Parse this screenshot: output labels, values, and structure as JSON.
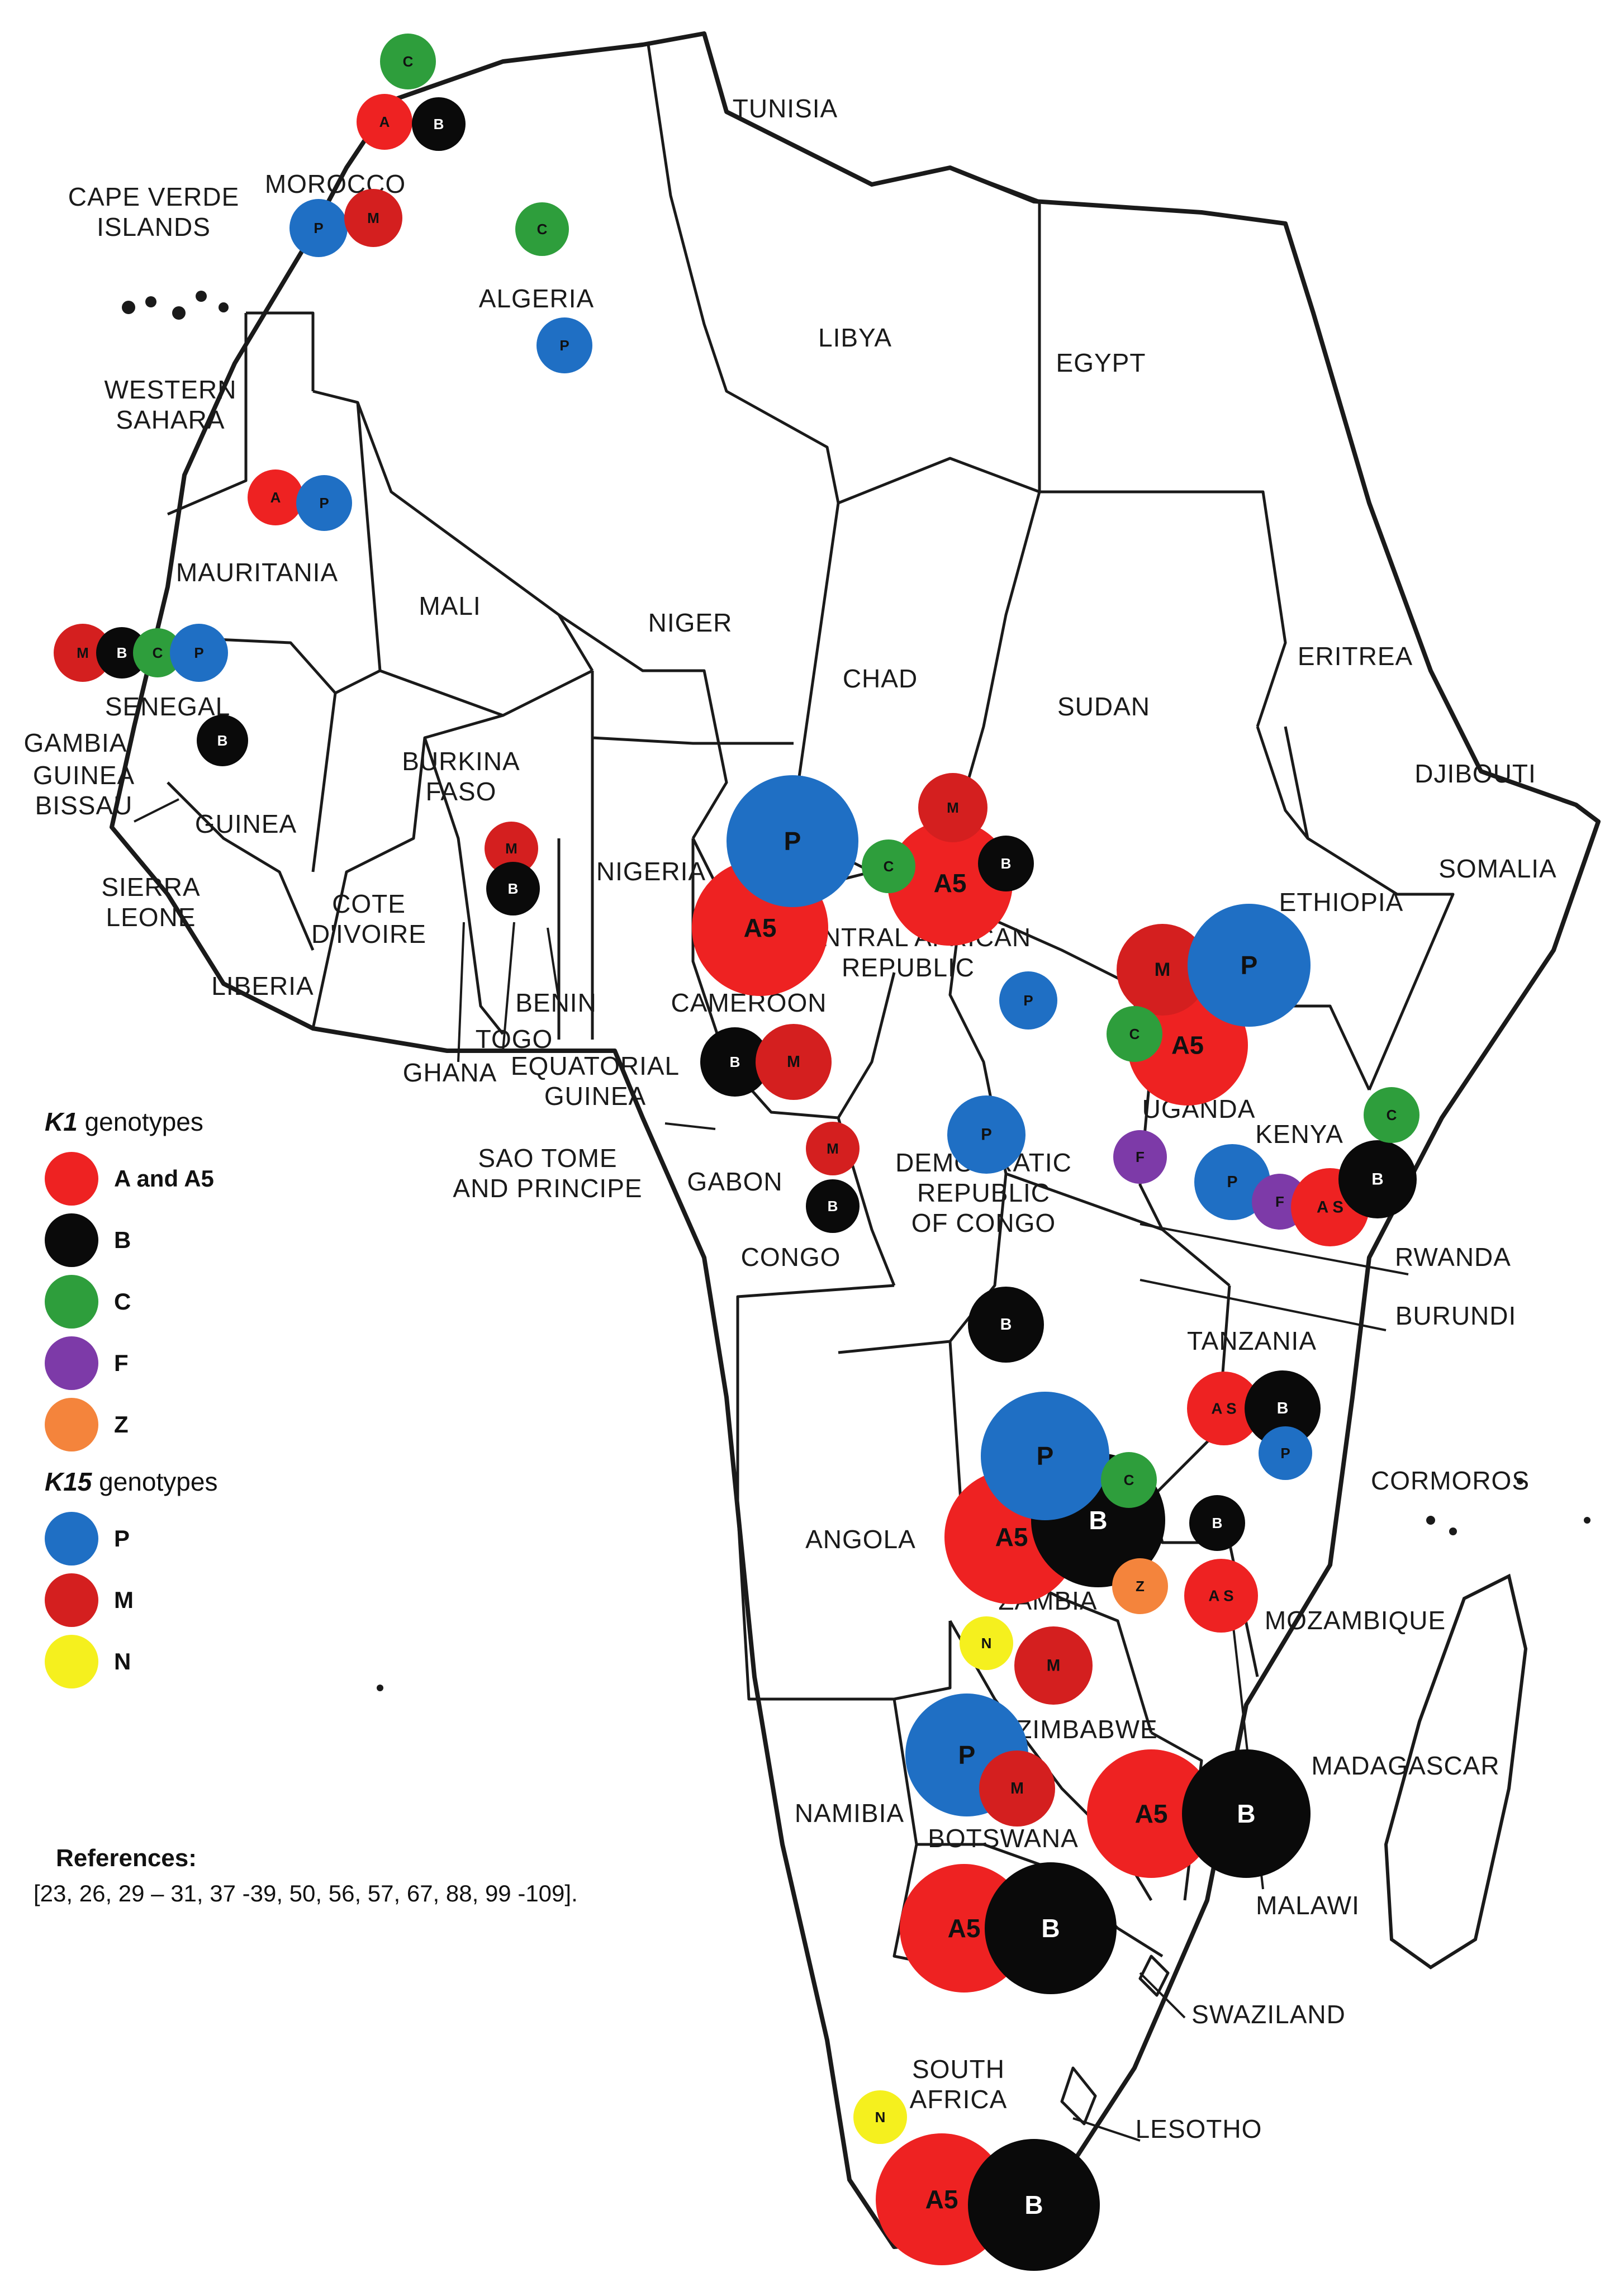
{
  "countries": [
    {
      "name": "TUNISIA",
      "lines": [
        "TUNISIA"
      ]
    },
    {
      "name": "MOROCCO",
      "lines": [
        "MOROCCO"
      ]
    },
    {
      "name": "CAPE VERDE ISLANDS",
      "lines": [
        "CAPE VERDE",
        "ISLANDS"
      ]
    },
    {
      "name": "ALGERIA",
      "lines": [
        "ALGERIA"
      ]
    },
    {
      "name": "LIBYA",
      "lines": [
        "LIBYA"
      ]
    },
    {
      "name": "EGYPT",
      "lines": [
        "EGYPT"
      ]
    },
    {
      "name": "WESTERN SAHARA",
      "lines": [
        "WESTERN",
        "SAHARA"
      ]
    },
    {
      "name": "MAURITANIA",
      "lines": [
        "MAURITANIA"
      ]
    },
    {
      "name": "MALI",
      "lines": [
        "MALI"
      ]
    },
    {
      "name": "NIGER",
      "lines": [
        "NIGER"
      ]
    },
    {
      "name": "CHAD",
      "lines": [
        "CHAD"
      ]
    },
    {
      "name": "SUDAN",
      "lines": [
        "SUDAN"
      ]
    },
    {
      "name": "ERITREA",
      "lines": [
        "ERITREA"
      ]
    },
    {
      "name": "DJIBOUTI",
      "lines": [
        "DJIBOUTI"
      ]
    },
    {
      "name": "SOMALIA",
      "lines": [
        "SOMALIA"
      ]
    },
    {
      "name": "ETHIOPIA",
      "lines": [
        "ETHIOPIA"
      ]
    },
    {
      "name": "SENEGAL",
      "lines": [
        "SENEGAL"
      ]
    },
    {
      "name": "GAMBIA",
      "lines": [
        "GAMBIA"
      ]
    },
    {
      "name": "GUINEA BISSAU",
      "lines": [
        "GUINEA",
        "BISSAU"
      ]
    },
    {
      "name": "GUINEA",
      "lines": [
        "GUINEA"
      ]
    },
    {
      "name": "SIERRA LEONE",
      "lines": [
        "SIERRA",
        "LEONE"
      ]
    },
    {
      "name": "LIBERIA",
      "lines": [
        "LIBERIA"
      ]
    },
    {
      "name": "COTE D'IVOIRE",
      "lines": [
        "COTE",
        "D'IVOIRE"
      ]
    },
    {
      "name": "BURKINA FASO",
      "lines": [
        "BURKINA",
        "FASO"
      ]
    },
    {
      "name": "GHANA",
      "lines": [
        "GHANA"
      ]
    },
    {
      "name": "TOGO",
      "lines": [
        "TOGO"
      ]
    },
    {
      "name": "BENIN",
      "lines": [
        "BENIN"
      ]
    },
    {
      "name": "NIGERIA",
      "lines": [
        "NIGERIA"
      ]
    },
    {
      "name": "CAMEROON",
      "lines": [
        "CAMEROON"
      ]
    },
    {
      "name": "CENTRAL AFRICAN REPUBLIC",
      "lines": [
        "CENTRAL AFRICAN",
        "REPUBLIC"
      ]
    },
    {
      "name": "EQUATORIAL GUINEA",
      "lines": [
        "EQUATORIAL",
        "GUINEA"
      ]
    },
    {
      "name": "SAO TOME AND PRINCIPE",
      "lines": [
        "SAO TOME",
        "AND PRINCIPE"
      ]
    },
    {
      "name": "GABON",
      "lines": [
        "GABON"
      ]
    },
    {
      "name": "CONGO",
      "lines": [
        "CONGO"
      ]
    },
    {
      "name": "DEMOCRATIC REPUBLIC OF CONGO",
      "lines": [
        "DEMOCRATIC",
        "REPUBLIC",
        "OF CONGO"
      ]
    },
    {
      "name": "UGANDA",
      "lines": [
        "UGANDA"
      ]
    },
    {
      "name": "KENYA",
      "lines": [
        "KENYA"
      ]
    },
    {
      "name": "RWANDA",
      "lines": [
        "RWANDA"
      ]
    },
    {
      "name": "BURUNDI",
      "lines": [
        "BURUNDI"
      ]
    },
    {
      "name": "TANZANIA",
      "lines": [
        "TANZANIA"
      ]
    },
    {
      "name": "CORMOROS",
      "lines": [
        "CORMOROS"
      ]
    },
    {
      "name": "ANGOLA",
      "lines": [
        "ANGOLA"
      ]
    },
    {
      "name": "ZAMBIA",
      "lines": [
        "ZAMBIA"
      ]
    },
    {
      "name": "MOZAMBIQUE",
      "lines": [
        "MOZAMBIQUE"
      ]
    },
    {
      "name": "ZIMBABWE",
      "lines": [
        "ZIMBABWE"
      ]
    },
    {
      "name": "MADAGASCAR",
      "lines": [
        "MADAGASCAR"
      ]
    },
    {
      "name": "NAMIBIA",
      "lines": [
        "NAMIBIA"
      ]
    },
    {
      "name": "BOTSWANA",
      "lines": [
        "BOTSWANA"
      ]
    },
    {
      "name": "MALAWI",
      "lines": [
        "MALAWI"
      ]
    },
    {
      "name": "SWAZILAND",
      "lines": [
        "SWAZILAND"
      ]
    },
    {
      "name": "SOUTH AFRICA",
      "lines": [
        "SOUTH",
        "AFRICA"
      ]
    },
    {
      "name": "LESOTHO",
      "lines": [
        "LESOTHO"
      ]
    }
  ],
  "genotype_markers": [
    {
      "label": "C",
      "color": "#2e9e3c"
    },
    {
      "label": "A",
      "color": "#ee2222"
    },
    {
      "label": "B",
      "color": "#0a0a0a"
    },
    {
      "label": "P",
      "color": "#1f6fc4"
    },
    {
      "label": "M",
      "color": "#d41f1f"
    },
    {
      "label": "C",
      "color": "#2e9e3c"
    },
    {
      "label": "P",
      "color": "#1f6fc4"
    },
    {
      "label": "A",
      "color": "#ee2222"
    },
    {
      "label": "P",
      "color": "#1f6fc4"
    },
    {
      "label": "M",
      "color": "#d41f1f"
    },
    {
      "label": "B",
      "color": "#0a0a0a"
    },
    {
      "label": "C",
      "color": "#2e9e3c"
    },
    {
      "label": "P",
      "color": "#1f6fc4"
    },
    {
      "label": "B",
      "color": "#0a0a0a"
    },
    {
      "label": "M",
      "color": "#d41f1f"
    },
    {
      "label": "B",
      "color": "#0a0a0a"
    },
    {
      "label": "A5",
      "color": "#ee2222"
    },
    {
      "label": "P",
      "color": "#1f6fc4"
    },
    {
      "label": "A5",
      "color": "#ee2222"
    },
    {
      "label": "M",
      "color": "#d41f1f"
    },
    {
      "label": "C",
      "color": "#2e9e3c"
    },
    {
      "label": "B",
      "color": "#0a0a0a"
    },
    {
      "label": "P",
      "color": "#1f6fc4"
    },
    {
      "label": "B",
      "color": "#0a0a0a"
    },
    {
      "label": "M",
      "color": "#d41f1f"
    },
    {
      "label": "M",
      "color": "#d41f1f"
    },
    {
      "label": "B",
      "color": "#0a0a0a"
    },
    {
      "label": "P",
      "color": "#1f6fc4"
    },
    {
      "label": "B",
      "color": "#0a0a0a"
    },
    {
      "label": "A5",
      "color": "#ee2222"
    },
    {
      "label": "M",
      "color": "#d41f1f"
    },
    {
      "label": "P",
      "color": "#1f6fc4"
    },
    {
      "label": "C",
      "color": "#2e9e3c"
    },
    {
      "label": "F",
      "color": "#7d3aa8"
    },
    {
      "label": "P",
      "color": "#1f6fc4"
    },
    {
      "label": "F",
      "color": "#7d3aa8"
    },
    {
      "label": "A S",
      "color": "#ee2222"
    },
    {
      "label": "B",
      "color": "#0a0a0a"
    },
    {
      "label": "C",
      "color": "#2e9e3c"
    },
    {
      "label": "A S",
      "color": "#ee2222"
    },
    {
      "label": "B",
      "color": "#0a0a0a"
    },
    {
      "label": "P",
      "color": "#1f6fc4"
    },
    {
      "label": "A5",
      "color": "#ee2222"
    },
    {
      "label": "B",
      "color": "#0a0a0a"
    },
    {
      "label": "P",
      "color": "#1f6fc4"
    },
    {
      "label": "C",
      "color": "#2e9e3c"
    },
    {
      "label": "Z",
      "color": "#f4843c"
    },
    {
      "label": "B",
      "color": "#0a0a0a"
    },
    {
      "label": "A S",
      "color": "#ee2222"
    },
    {
      "label": "N",
      "color": "#f5f01e"
    },
    {
      "label": "M",
      "color": "#d41f1f"
    },
    {
      "label": "P",
      "color": "#1f6fc4"
    },
    {
      "label": "M",
      "color": "#d41f1f"
    },
    {
      "label": "A5",
      "color": "#ee2222"
    },
    {
      "label": "B",
      "color": "#0a0a0a"
    },
    {
      "label": "A5",
      "color": "#ee2222"
    },
    {
      "label": "B",
      "color": "#0a0a0a"
    },
    {
      "label": "N",
      "color": "#f5f01e"
    },
    {
      "label": "A5",
      "color": "#ee2222"
    },
    {
      "label": "B",
      "color": "#0a0a0a"
    }
  ],
  "legend": {
    "k1_title_italic": "K1",
    "k1_title_rest": " genotypes",
    "k1_items": [
      {
        "label": "A and A5",
        "color": "#ee2222"
      },
      {
        "label": "B",
        "color": "#0a0a0a"
      },
      {
        "label": "C",
        "color": "#2e9e3c"
      },
      {
        "label": "F",
        "color": "#7d3aa8"
      },
      {
        "label": "Z",
        "color": "#f4843c"
      }
    ],
    "k15_title_italic": "K15",
    "k15_title_rest": " genotypes",
    "k15_items": [
      {
        "label": "P",
        "color": "#1f6fc4"
      },
      {
        "label": "M",
        "color": "#d41f1f"
      },
      {
        "label": "N",
        "color": "#f5f01e"
      }
    ]
  },
  "references": {
    "title": "References:",
    "text": "[23, 26, 29 – 31, 37 -39, 50, 56, 57, 67, 88, 99 -109]."
  },
  "colors": {
    "outline": "#1a1a1a",
    "land": "#ffffff"
  }
}
